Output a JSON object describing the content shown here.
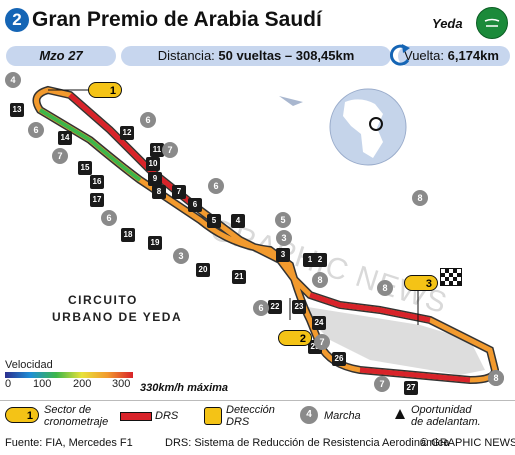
{
  "header": {
    "round_number": "2",
    "title": "Gran Premio de Arabia Saudí",
    "city": "Yeda",
    "date": "Mzo 27",
    "distance_label": "Distancia:",
    "distance_value": "50 vueltas – 308,45km",
    "lap_label": "Vuelta:",
    "lap_value": "6,174km"
  },
  "map": {
    "circuit_name_line1": "CIRCUITO",
    "circuit_name_line2": "URBANO DE YEDA",
    "watermark": "GRAPHIC NEWS",
    "sectors": [
      "1",
      "2",
      "3"
    ],
    "corners": [
      "1",
      "2",
      "3",
      "4",
      "5",
      "6",
      "7",
      "8",
      "9",
      "10",
      "11",
      "12",
      "13",
      "14",
      "15",
      "16",
      "17",
      "18",
      "19",
      "20",
      "21",
      "22",
      "23",
      "24",
      "25",
      "26",
      "27"
    ],
    "gears": [
      "4",
      "6",
      "6",
      "7",
      "7",
      "6",
      "6",
      "5",
      "3",
      "8",
      "8",
      "7",
      "6",
      "7",
      "7",
      "8",
      "3",
      "8"
    ]
  },
  "speed_scale": {
    "title": "Velocidad",
    "ticks": [
      "0",
      "100",
      "200",
      "300"
    ],
    "max_label": "330km/h máxima"
  },
  "legend": {
    "sector_num": "1",
    "sector_label_line1": "Sector de",
    "sector_label_line2": "cronometraje",
    "drs_label": "DRS",
    "detection_label_line1": "Detección",
    "detection_label_line2": "DRS",
    "gear_label": "Marcha",
    "gear_num": "4",
    "overtake_label_line1": "Oportunidad",
    "overtake_label_line2": "de adelantam."
  },
  "footer": {
    "source": "Fuente: FIA, Mercedes F1",
    "drs_note": "DRS: Sistema de Reducción de Resistencia Aerodinámica",
    "copyright": "© GRAPHIC NEWS"
  },
  "colors": {
    "accent_blue": "#1565b5",
    "pill_blue": "#c7d6ee",
    "drs_red": "#d8232a",
    "sector_yellow": "#f4c316",
    "corner_black": "#1a1a1a",
    "gear_gray": "#8a8a8a"
  }
}
